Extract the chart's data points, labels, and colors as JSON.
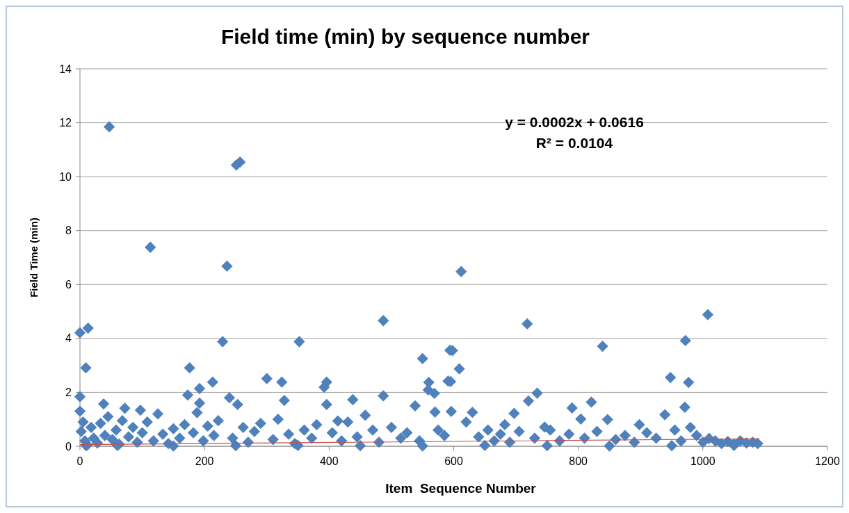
{
  "chart_data": {
    "type": "scatter",
    "title": "Field time (min) by sequence number",
    "xlabel": "Item  Sequence Number",
    "ylabel": "Field Time (min)",
    "xlim": [
      0,
      1200
    ],
    "xticks": [
      0,
      200,
      400,
      600,
      800,
      1000,
      1200
    ],
    "ylim": [
      0,
      14
    ],
    "yticks": [
      0,
      2,
      4,
      6,
      8,
      10,
      12,
      14
    ],
    "grid": "y",
    "annotations": [
      "y = 0.0002x + 0.0616",
      "R² = 0.0104"
    ],
    "series": [
      {
        "marker": "diamond",
        "color": "#4f81bd",
        "x": [
          47,
          113,
          251,
          257,
          236,
          612,
          0,
          13,
          9.5,
          0,
          0,
          229,
          352,
          487,
          176,
          213,
          192,
          173,
          300,
          324,
          396,
          392,
          550,
          560,
          559,
          569,
          594,
          591,
          538,
          570,
          487,
          438,
          396,
          458,
          240,
          328,
          72,
          38,
          97,
          192,
          253,
          414,
          598,
          609,
          595,
          718,
          839,
          1008,
          972,
          948,
          977,
          734,
          720,
          790,
          821,
          804,
          847,
          971,
          980,
          596,
          630,
          697,
          939,
          898,
          746,
          682,
          1010,
          2,
          5,
          8,
          12,
          18,
          22,
          28,
          33,
          40,
          45,
          52,
          58,
          63,
          68,
          78,
          85,
          92,
          100,
          108,
          118,
          125,
          133,
          142,
          150,
          160,
          168,
          182,
          188,
          198,
          205,
          215,
          222,
          245,
          262,
          270,
          280,
          290,
          310,
          318,
          335,
          345,
          360,
          372,
          380,
          405,
          420,
          430,
          445,
          470,
          480,
          500,
          515,
          525,
          545,
          575,
          585,
          620,
          640,
          655,
          665,
          675,
          690,
          705,
          730,
          755,
          770,
          785,
          810,
          830,
          860,
          875,
          890,
          910,
          925,
          955,
          965,
          990,
          1000,
          1020,
          1030,
          1040,
          1050,
          1060,
          1070,
          1080,
          1088,
          10,
          60,
          150,
          250,
          350,
          450,
          550,
          650,
          750,
          850,
          950,
          1050
        ],
        "values": [
          11.85,
          7.38,
          10.43,
          10.54,
          6.68,
          6.48,
          4.21,
          4.38,
          2.91,
          1.84,
          1.3,
          3.88,
          3.88,
          4.66,
          2.91,
          2.38,
          2.14,
          1.9,
          2.51,
          2.38,
          2.38,
          2.19,
          3.25,
          2.37,
          2.09,
          1.96,
          3.56,
          2.42,
          1.5,
          1.27,
          1.87,
          1.73,
          1.55,
          1.15,
          1.8,
          1.7,
          1.41,
          1.57,
          1.34,
          1.6,
          1.55,
          0.94,
          3.55,
          2.87,
          2.4,
          4.54,
          3.71,
          4.88,
          3.92,
          2.55,
          2.37,
          1.97,
          1.68,
          1.42,
          1.64,
          1.01,
          0.99,
          1.45,
          0.7,
          1.29,
          1.26,
          1.22,
          1.17,
          0.8,
          0.71,
          0.8,
          0.29,
          0.55,
          0.9,
          0.2,
          0.05,
          0.7,
          0.3,
          0.12,
          0.85,
          0.4,
          1.1,
          0.25,
          0.6,
          0.08,
          0.95,
          0.35,
          0.7,
          0.15,
          0.5,
          0.9,
          0.2,
          1.2,
          0.45,
          0.1,
          0.65,
          0.3,
          0.8,
          0.5,
          1.25,
          0.2,
          0.75,
          0.4,
          0.95,
          0.3,
          0.7,
          0.15,
          0.55,
          0.85,
          0.25,
          1.0,
          0.45,
          0.1,
          0.6,
          0.3,
          0.8,
          0.5,
          0.2,
          0.9,
          0.35,
          0.6,
          0.15,
          0.7,
          0.3,
          0.5,
          0.2,
          0.6,
          0.4,
          0.9,
          0.35,
          0.6,
          0.2,
          0.45,
          0.15,
          0.55,
          0.3,
          0.6,
          0.2,
          0.45,
          0.3,
          0.55,
          0.25,
          0.4,
          0.15,
          0.5,
          0.3,
          0.6,
          0.2,
          0.4,
          0.15,
          0.2,
          0.1,
          0.18,
          0.08,
          0.2,
          0.12,
          0.15,
          0.1,
          0.02,
          0.03,
          0.01,
          0.02,
          0.03,
          0.02,
          0.01,
          0.03,
          0.02,
          0.01,
          0.02,
          0.03
        ]
      },
      {
        "type": "line",
        "color": "#c0504d",
        "x": [
          0,
          1090
        ],
        "values": [
          0.06,
          0.28
        ]
      }
    ]
  }
}
